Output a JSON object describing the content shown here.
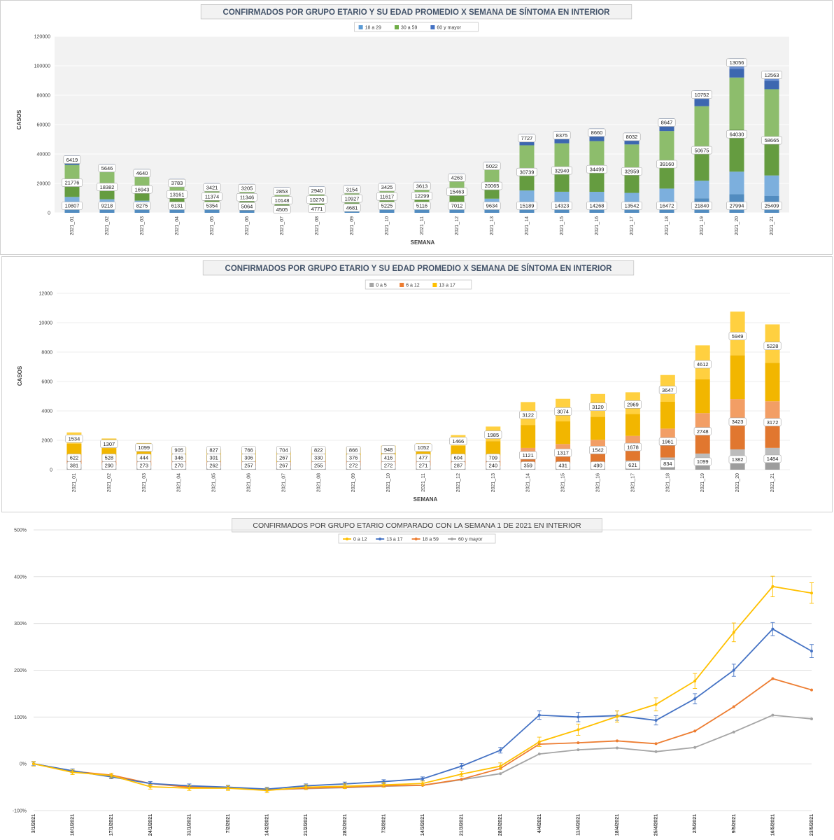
{
  "charts": {
    "c1": {
      "title": "CONFIRMADOS POR GRUPO ETARIO Y SU EDAD PROMEDIO X SEMANA DE SÍNTOMA EN INTERIOR",
      "xlabel": "SEMANA",
      "ylabel": "CASOS"
    },
    "c2": {
      "title": "CONFIRMADOS POR GRUPO ETARIO Y SU EDAD PROMEDIO X SEMANA DE SÍNTOMA EN INTERIOR",
      "xlabel": "SEMANA",
      "ylabel": "CASOS"
    },
    "c3": {
      "title": "CONFIRMADOS POR GRUPO ETARIO COMPARADO CON LA SEMANA 1 DE 2021 EN INTERIOR"
    }
  },
  "chart_data": [
    {
      "type": "bar",
      "stacked": true,
      "title": "CONFIRMADOS POR GRUPO ETARIO Y SU EDAD PROMEDIO X SEMANA DE SÍNTOMA EN INTERIOR",
      "xlabel": "SEMANA",
      "ylabel": "CASOS",
      "ylim": [
        0,
        120000
      ],
      "yticks": [
        0,
        20000,
        40000,
        60000,
        80000,
        100000,
        120000
      ],
      "legend_position": "top",
      "categories": [
        "2021_01",
        "2021_02",
        "2021_03",
        "2021_04",
        "2021_05",
        "2021_06",
        "2021_07",
        "2021_08",
        "2021_09",
        "2021_10",
        "2021_11",
        "2021_12",
        "2021_13",
        "2021_14",
        "2021_15",
        "2021_16",
        "2021_17",
        "2021_18",
        "2021_19",
        "2021_20",
        "2021_21"
      ],
      "series": [
        {
          "name": "18 a 29",
          "color": "#5b9bd5",
          "values": [
            10807,
            9218,
            8275,
            6131,
            5354,
            5064,
            4505,
            4771,
            4681,
            5225,
            5116,
            7012,
            9634,
            15189,
            14323,
            14268,
            13542,
            16472,
            21840,
            27994,
            25409
          ]
        },
        {
          "name": "30 a 59",
          "color": "#70ad47",
          "values": [
            21776,
            18382,
            16943,
            13161,
            11374,
            11346,
            10148,
            10270,
            10927,
            11617,
            12299,
            15463,
            20065,
            30739,
            32940,
            34499,
            32959,
            39160,
            50675,
            64030,
            58665
          ]
        },
        {
          "name": "60 y mayor",
          "color": "#4472c4",
          "values": [
            6419,
            5646,
            4640,
            3783,
            3421,
            3205,
            2853,
            2940,
            3154,
            3425,
            3613,
            4263,
            5022,
            7727,
            8375,
            8660,
            8032,
            8647,
            10752,
            13056,
            12563
          ]
        }
      ]
    },
    {
      "type": "bar",
      "stacked": true,
      "title": "CONFIRMADOS POR GRUPO ETARIO Y SU EDAD PROMEDIO X SEMANA DE SÍNTOMA EN INTERIOR",
      "xlabel": "SEMANA",
      "ylabel": "CASOS",
      "ylim": [
        0,
        12000
      ],
      "yticks": [
        0,
        2000,
        4000,
        6000,
        8000,
        10000,
        12000
      ],
      "legend_position": "top",
      "categories": [
        "2021_01",
        "2021_02",
        "2021_03",
        "2021_04",
        "2021_05",
        "2021_06",
        "2021_07",
        "2021_08",
        "2021_09",
        "2021_10",
        "2021_11",
        "2021_12",
        "2021_13",
        "2021_14",
        "2021_15",
        "2021_16",
        "2021_17",
        "2021_18",
        "2021_19",
        "2021_20",
        "2021_21"
      ],
      "series": [
        {
          "name": "0 a 5",
          "color": "#a5a5a5",
          "values": [
            381,
            290,
            273,
            270,
            262,
            257,
            267,
            255,
            272,
            272,
            271,
            287,
            240,
            359,
            431,
            490,
            621,
            834,
            1099,
            1382,
            1484
          ]
        },
        {
          "name": "6 a 12",
          "color": "#ed7d31",
          "values": [
            622,
            528,
            444,
            346,
            301,
            306,
            267,
            330,
            376,
            416,
            477,
            604,
            709,
            1121,
            1317,
            1542,
            1678,
            1961,
            2748,
            3423,
            3172
          ]
        },
        {
          "name": "13 a 17",
          "color": "#ffc000",
          "values": [
            1534,
            1307,
            1099,
            905,
            827,
            766,
            704,
            822,
            866,
            948,
            1052,
            1466,
            1985,
            3122,
            3074,
            3120,
            2969,
            3647,
            4612,
            5949,
            5228
          ]
        }
      ]
    },
    {
      "type": "line",
      "title": "CONFIRMADOS POR GRUPO ETARIO COMPARADO CON LA SEMANA 1 DE 2021 EN INTERIOR",
      "ylim": [
        -100,
        500
      ],
      "yticks": [
        -100,
        0,
        100,
        200,
        300,
        400,
        500
      ],
      "yunit": "%",
      "legend_position": "top",
      "x": [
        "3/1/2021",
        "10/1/2021",
        "17/1/2021",
        "24/1/2021",
        "31/1/2021",
        "7/2/2021",
        "14/2/2021",
        "21/2/2021",
        "28/2/2021",
        "7/3/2021",
        "14/3/2021",
        "21/3/2021",
        "28/3/2021",
        "4/4/2021",
        "11/4/2021",
        "18/4/2021",
        "25/4/2021",
        "2/5/2021",
        "9/5/2021",
        "16/5/2021",
        "23/5/2021"
      ],
      "series": [
        {
          "name": "0 a 12",
          "color": "#ffc000",
          "values": [
            0,
            -18,
            -25,
            -49,
            -52,
            -52,
            -57,
            -50,
            -48,
            -45,
            -42,
            -22,
            -5,
            47,
            73,
            101,
            127,
            177,
            281,
            379,
            365
          ],
          "error": [
            5,
            5,
            5,
            5,
            5,
            5,
            5,
            5,
            5,
            5,
            5,
            5,
            7,
            10,
            12,
            12,
            14,
            16,
            20,
            22,
            22
          ]
        },
        {
          "name": "13 a 17",
          "color": "#4472c4",
          "values": [
            0,
            -15,
            -28,
            -42,
            -47,
            -50,
            -54,
            -47,
            -43,
            -38,
            -32,
            -5,
            29,
            104,
            100,
            103,
            93,
            139,
            200,
            288,
            241
          ],
          "error": [
            4,
            4,
            4,
            4,
            4,
            4,
            4,
            4,
            4,
            4,
            4,
            6,
            6,
            9,
            10,
            10,
            10,
            11,
            13,
            14,
            14
          ]
        },
        {
          "name": "18 a 59",
          "color": "#ed7d31",
          "values": [
            0,
            -16,
            -24,
            -42,
            -50,
            -51,
            -56,
            -52,
            -50,
            -47,
            -46,
            -33,
            -10,
            42,
            45,
            49,
            43,
            70,
            122,
            182,
            158
          ],
          "error": [
            0,
            0,
            0,
            0,
            0,
            0,
            0,
            0,
            0,
            0,
            0,
            0,
            0,
            0,
            0,
            0,
            0,
            0,
            0,
            0,
            0
          ]
        },
        {
          "name": "60 y mayor",
          "color": "#a5a5a5",
          "values": [
            0,
            -15,
            -27,
            -42,
            -49,
            -51,
            -55,
            -53,
            -51,
            -48,
            -46,
            -34,
            -21,
            21,
            30,
            34,
            26,
            35,
            68,
            104,
            96
          ],
          "error": [
            0,
            0,
            0,
            0,
            0,
            0,
            0,
            0,
            0,
            0,
            0,
            0,
            0,
            0,
            0,
            0,
            0,
            0,
            0,
            0,
            0
          ]
        }
      ]
    }
  ]
}
